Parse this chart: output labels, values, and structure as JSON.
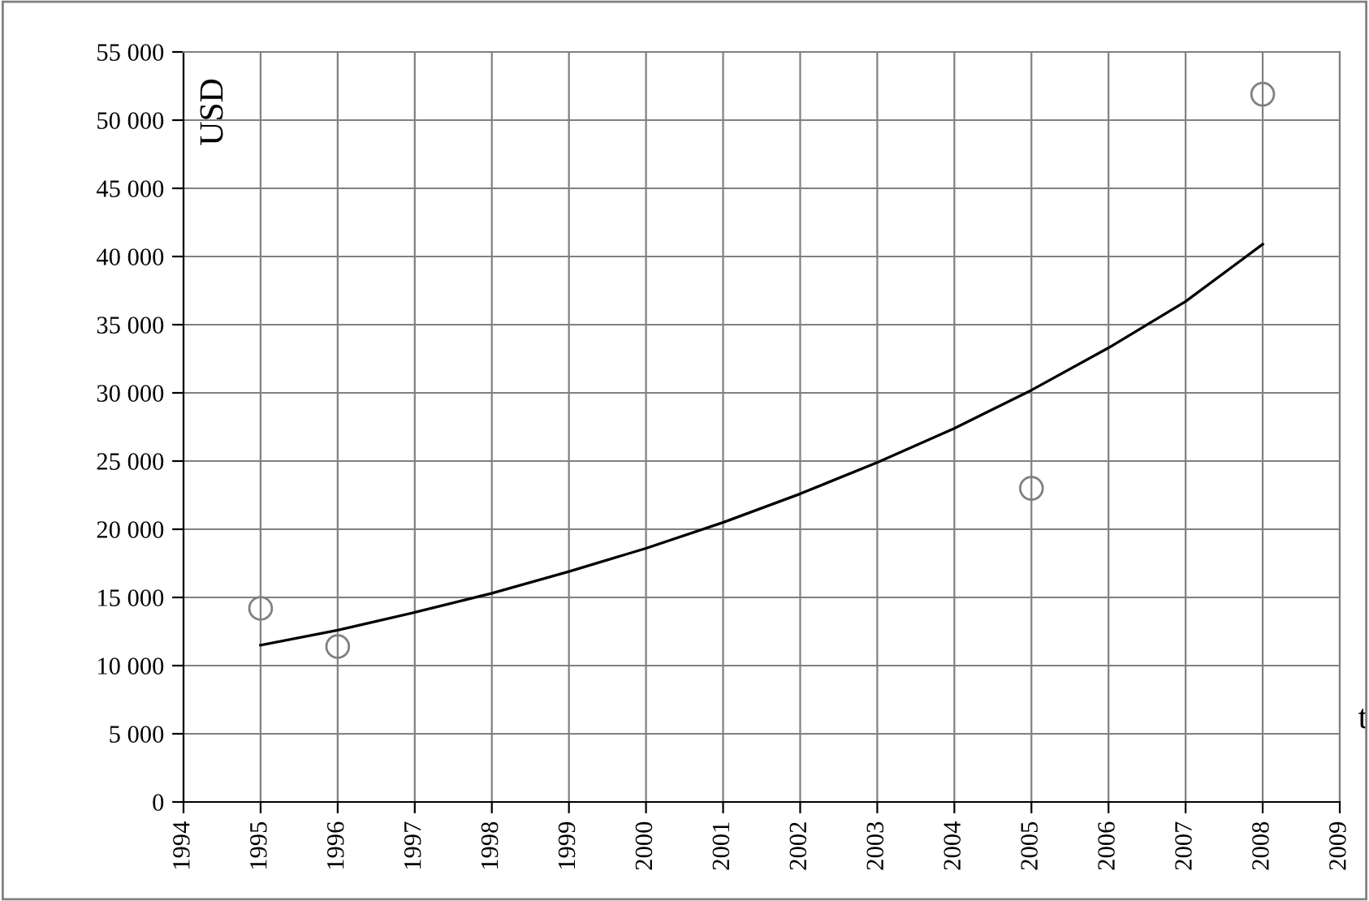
{
  "chart_data": {
    "type": "scatter",
    "xlabel": "t",
    "ylabel": "USD",
    "series": [
      {
        "color": "#808080",
        "marker": "circle",
        "x": [
          1995,
          1996,
          2005,
          2008
        ],
        "values": [
          14200,
          11400,
          23000,
          51900
        ]
      },
      {
        "type": "line",
        "color": "#000000",
        "marker": "none",
        "line_style": "solid",
        "x": [
          1995,
          1996,
          1997,
          1998,
          1999,
          2000,
          2001,
          2002,
          2003,
          2004,
          2005,
          2006,
          2007,
          2008
        ],
        "values": [
          11500,
          12600,
          13900,
          15300,
          16900,
          18600,
          20500,
          22600,
          24900,
          27400,
          30200,
          33300,
          36700,
          40900
        ]
      }
    ],
    "xlim": [
      1994,
      2009
    ],
    "xticks": [
      1994,
      1995,
      1996,
      1997,
      1998,
      1999,
      2000,
      2001,
      2002,
      2003,
      2004,
      2005,
      2006,
      2007,
      2008,
      2009
    ],
    "ylim": [
      0,
      55000
    ],
    "yticks": [
      0,
      {
        "value": 5000,
        "label": "5 000"
      },
      {
        "value": 10000,
        "label": "10 000"
      },
      {
        "value": 15000,
        "label": "15 000"
      },
      {
        "value": 20000,
        "label": "20 000"
      },
      {
        "value": 25000,
        "label": "25 000"
      },
      {
        "value": 30000,
        "label": "30 000"
      },
      {
        "value": 35000,
        "label": "35 000"
      },
      {
        "value": 40000,
        "label": "40 000"
      },
      {
        "value": 45000,
        "label": "45 000"
      },
      {
        "value": 50000,
        "label": "50 000"
      },
      {
        "value": 55000,
        "label": "55 000"
      }
    ],
    "grid": true,
    "legend": false
  }
}
